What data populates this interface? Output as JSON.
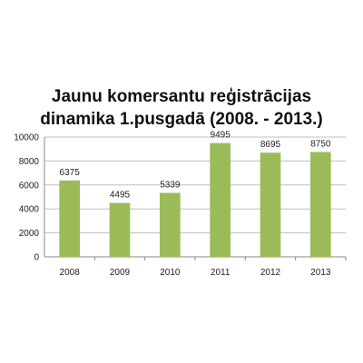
{
  "chart_data": {
    "type": "bar",
    "title_line1": "Jaunu komersantu reģistrācijas",
    "title_line2": "dinamika 1.pusgadā (2008. - 2013.)",
    "categories": [
      "2008",
      "2009",
      "2010",
      "2011",
      "2012",
      "2013"
    ],
    "values": [
      6375,
      4495,
      5339,
      9495,
      8695,
      8750
    ],
    "data_labels": [
      "6375",
      "4495",
      "5339",
      "9495",
      "8695",
      "8750"
    ],
    "ylim": [
      0,
      10000
    ],
    "yticks": [
      0,
      2000,
      4000,
      6000,
      8000,
      10000
    ],
    "ytick_labels": [
      "0",
      "2000",
      "4000",
      "6000",
      "8000",
      "10000"
    ],
    "grid": true,
    "bar_color": "#9bbb59",
    "grid_color": "#bfbfbf"
  }
}
